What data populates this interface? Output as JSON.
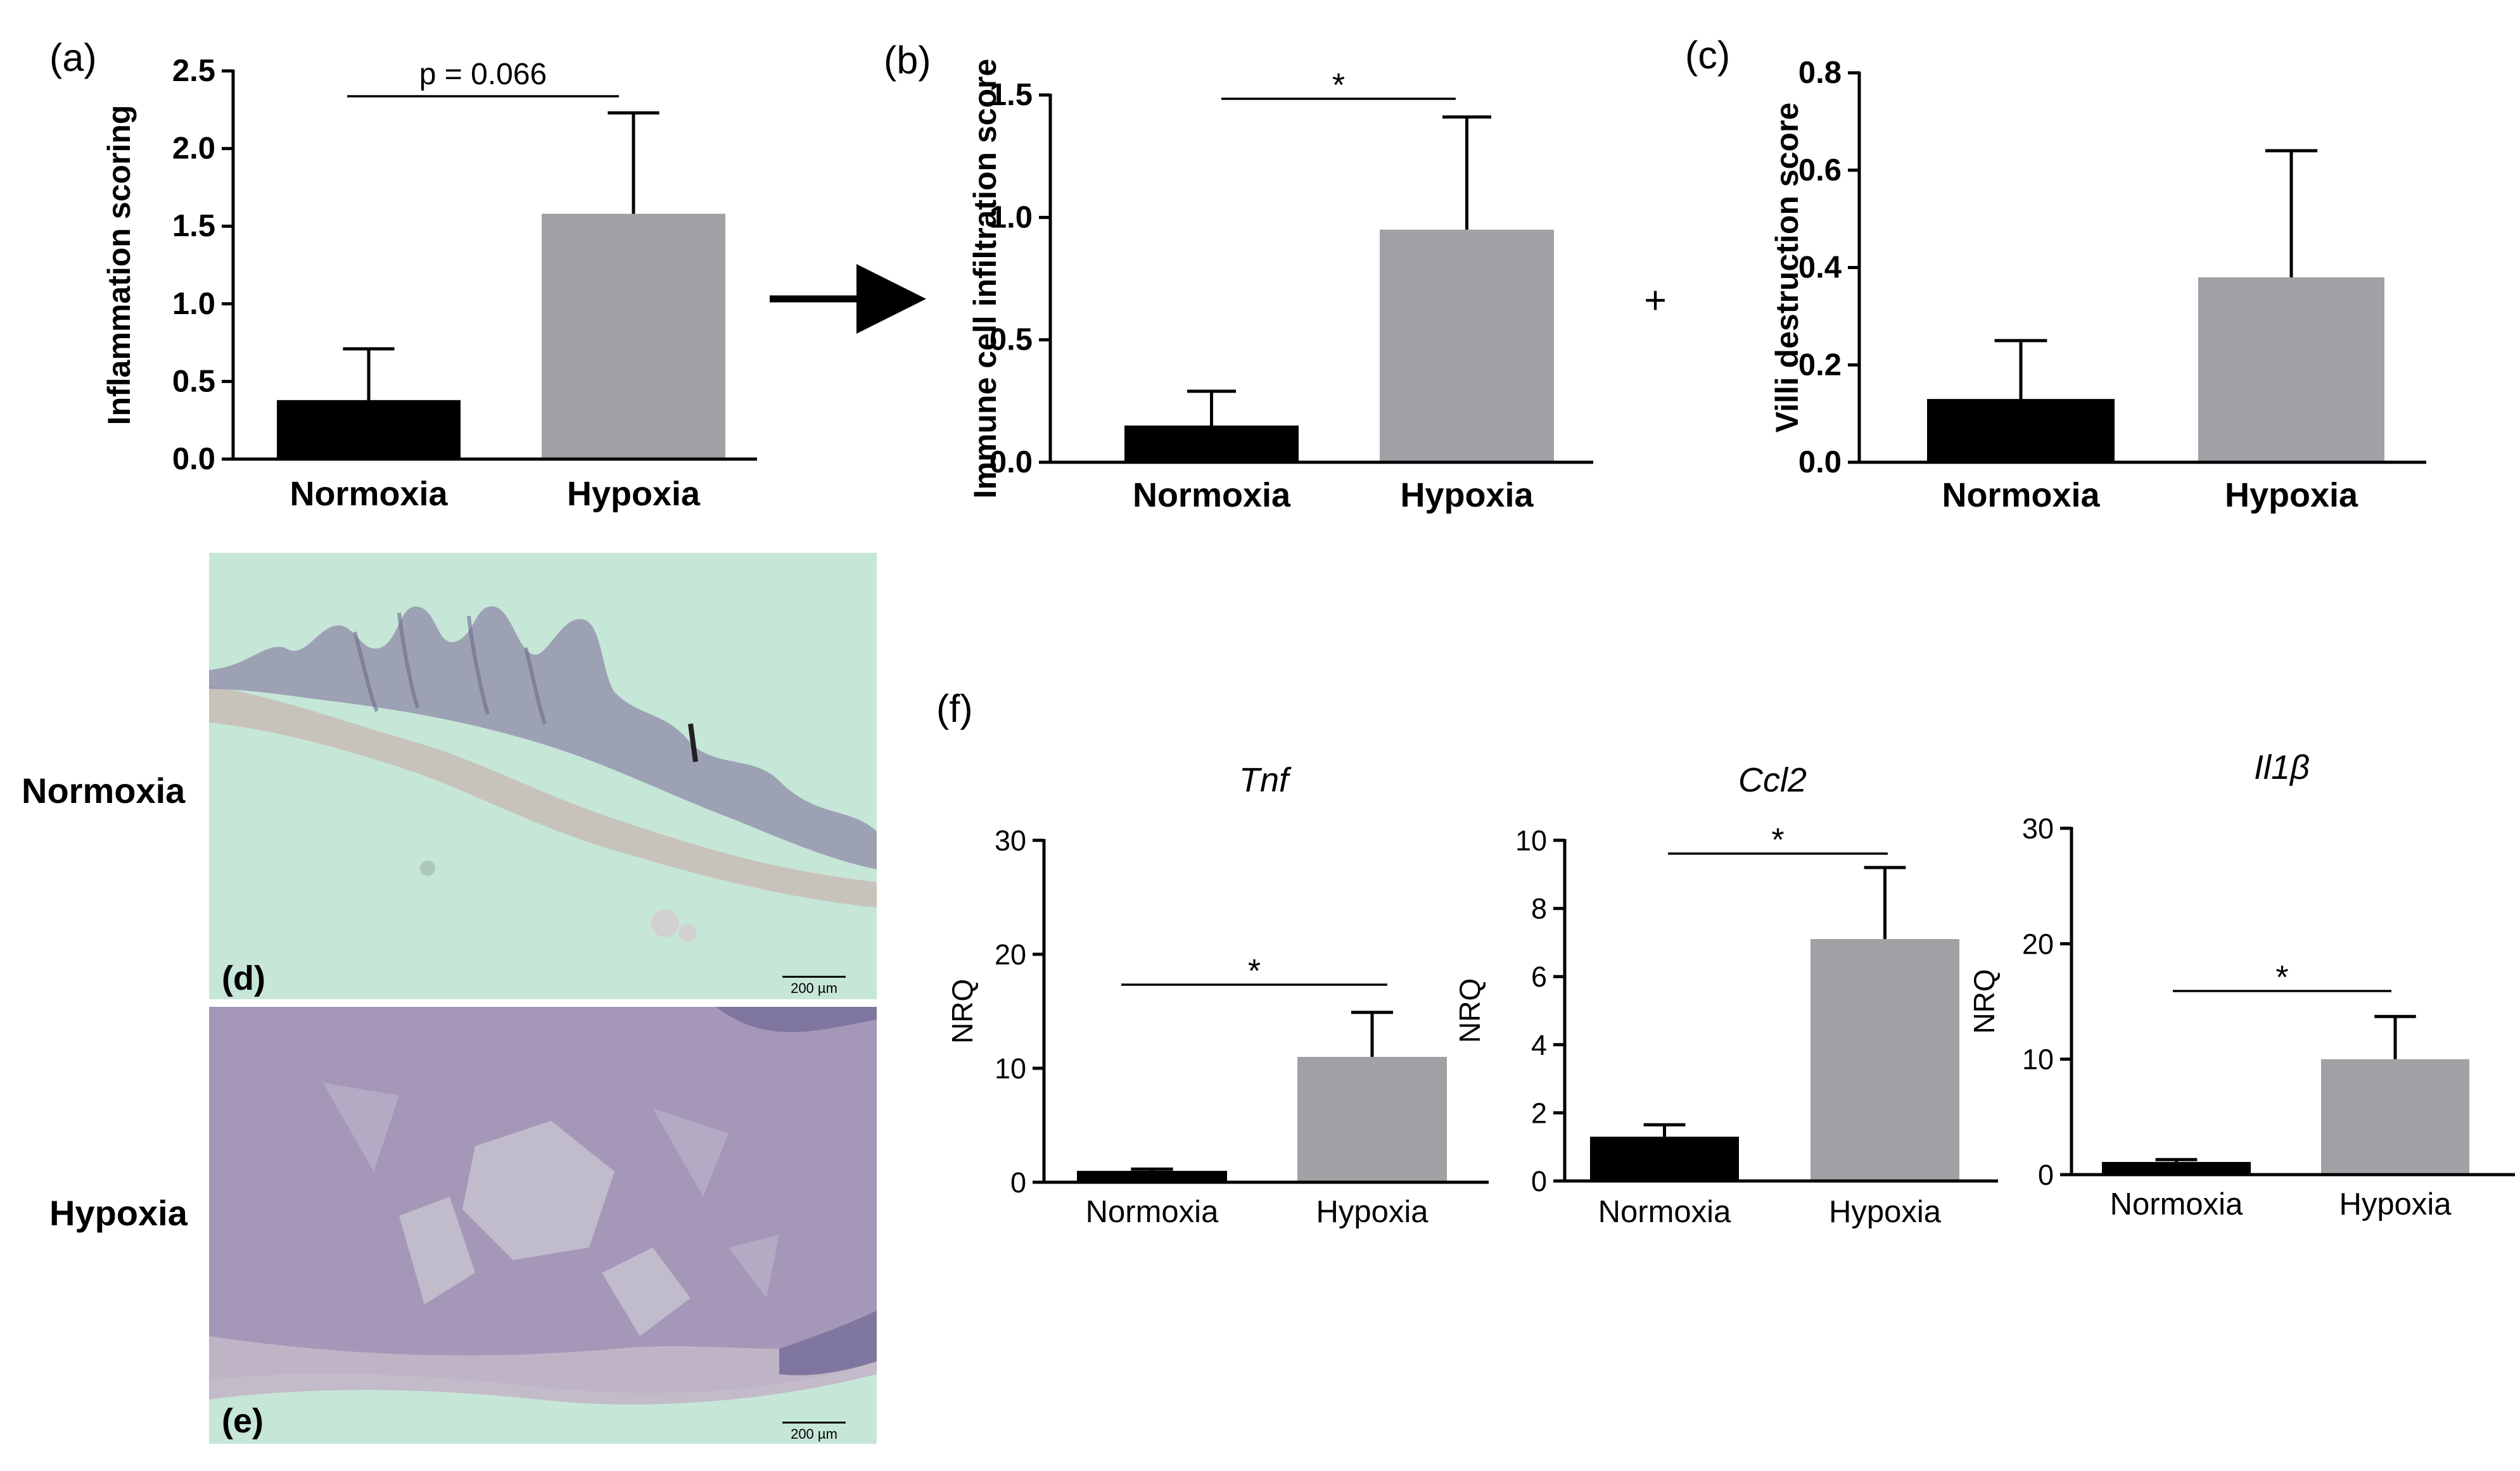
{
  "labels": {
    "a": "(a)",
    "b": "(b)",
    "c": "(c)",
    "d": "(d)",
    "e": "(e)",
    "f": "(f)",
    "plus": "+",
    "normoxia_row": "Normoxia",
    "hypoxia_row": "Hypoxia",
    "scalebar_d": "200 µm",
    "scalebar_e": "200 µm"
  },
  "colors": {
    "normoxia": "#000000",
    "hypoxia": "#a1a0a5",
    "micrograph_bg": "#c6e6d8",
    "tissue": "#a597b8"
  },
  "chart_data": [
    {
      "id": "a",
      "type": "bar",
      "categories": [
        "Normoxia",
        "Hypoxia"
      ],
      "values": [
        0.38,
        1.58
      ],
      "errors": [
        0.33,
        0.65
      ],
      "ylabel": "Inflammation scoring",
      "ylim": [
        0,
        2.5
      ],
      "yticks": [
        "0.0",
        "0.5",
        "1.0",
        "1.5",
        "2.0",
        "2.5"
      ],
      "significance": "p = 0.066"
    },
    {
      "id": "b",
      "type": "bar",
      "categories": [
        "Normoxia",
        "Hypoxia"
      ],
      "values": [
        0.15,
        0.95
      ],
      "errors": [
        0.14,
        0.46
      ],
      "ylabel": "Immune cell infiltration score",
      "ylim": [
        0,
        1.5
      ],
      "yticks": [
        "0.0",
        "0.5",
        "1.0",
        "1.5"
      ],
      "significance": "*"
    },
    {
      "id": "c",
      "type": "bar",
      "categories": [
        "Normoxia",
        "Hypoxia"
      ],
      "values": [
        0.13,
        0.38
      ],
      "errors": [
        0.12,
        0.26
      ],
      "ylabel": "Villi destruction score",
      "ylim": [
        0,
        0.8
      ],
      "yticks": [
        "0.0",
        "0.2",
        "0.4",
        "0.6",
        "0.8"
      ],
      "significance": ""
    },
    {
      "id": "f1",
      "type": "bar",
      "title": "Tnf",
      "categories": [
        "Normoxia",
        "Hypoxia"
      ],
      "values": [
        1.0,
        11.0
      ],
      "errors": [
        0.15,
        3.9
      ],
      "ylabel": "NRQ",
      "ylim": [
        0,
        30
      ],
      "yticks": [
        "0",
        "10",
        "20",
        "30"
      ],
      "significance": "*"
    },
    {
      "id": "f2",
      "type": "bar",
      "title": "Ccl2",
      "categories": [
        "Normoxia",
        "Hypoxia"
      ],
      "values": [
        1.3,
        7.1
      ],
      "errors": [
        0.35,
        2.1
      ],
      "ylabel": "NRQ",
      "ylim": [
        0,
        10
      ],
      "yticks": [
        "0",
        "2",
        "4",
        "6",
        "8",
        "10"
      ],
      "significance": "*"
    },
    {
      "id": "f3",
      "type": "bar",
      "title": "Il1β",
      "categories": [
        "Normoxia",
        "Hypoxia"
      ],
      "values": [
        1.1,
        10.0
      ],
      "errors": [
        0.2,
        3.7
      ],
      "ylabel": "NRQ",
      "ylim": [
        0,
        30
      ],
      "yticks": [
        "0",
        "10",
        "20",
        "30"
      ],
      "significance": "*"
    }
  ]
}
